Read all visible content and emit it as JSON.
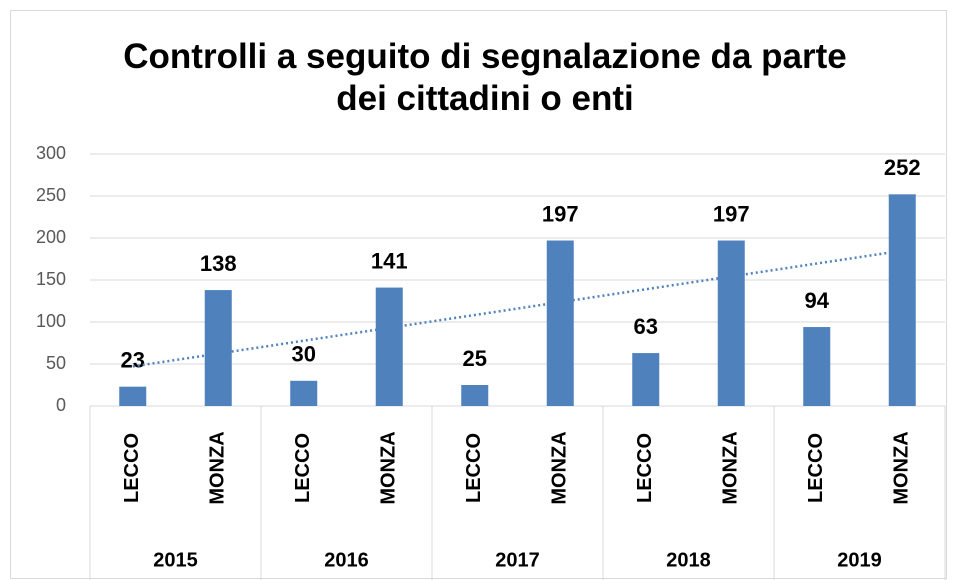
{
  "chart_data": {
    "type": "bar",
    "title": "Controlli a seguito di segnalazione da parte dei cittadini o enti",
    "categories": [
      "LECCO",
      "MONZA",
      "LECCO",
      "MONZA",
      "LECCO",
      "MONZA",
      "LECCO",
      "MONZA",
      "LECCO",
      "MONZA"
    ],
    "groups": [
      "2015",
      "2016",
      "2017",
      "2018",
      "2019"
    ],
    "values": [
      23,
      138,
      30,
      141,
      25,
      197,
      63,
      197,
      94,
      252
    ],
    "color": "#4f81bd",
    "trendline": "linear",
    "ylim": [
      0,
      300
    ],
    "yticks": [
      0,
      50,
      100,
      150,
      200,
      250,
      300
    ],
    "grid": true
  }
}
